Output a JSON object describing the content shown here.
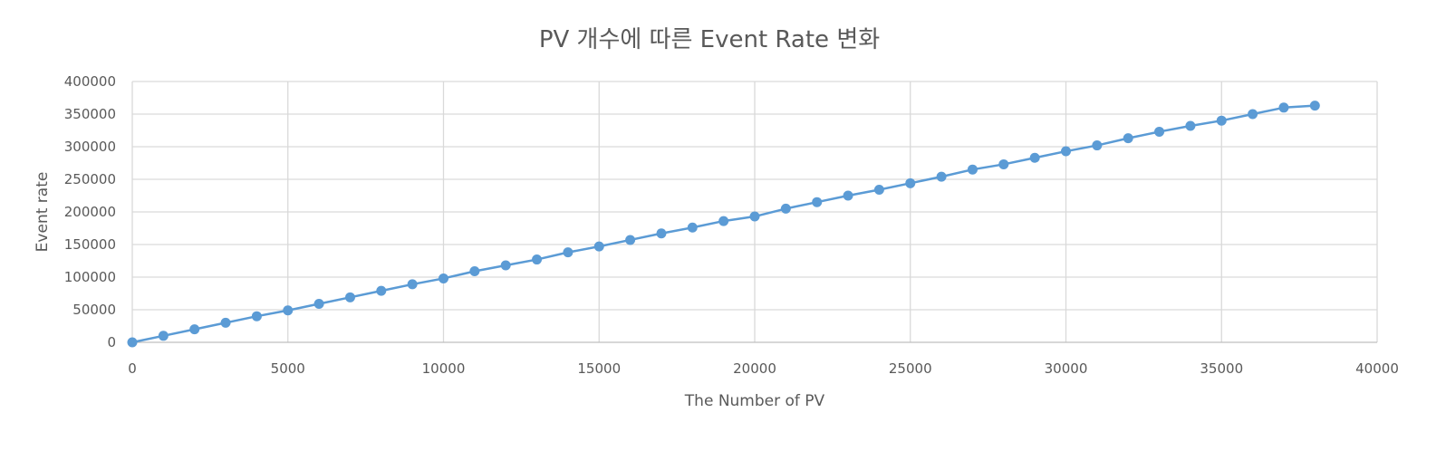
{
  "chart_data": {
    "type": "scatter",
    "title": "PV 개수에 따른 Event Rate 변화",
    "xlabel": "The Number of PV",
    "ylabel": "Event rate",
    "xlim": [
      0,
      40000
    ],
    "ylim": [
      0,
      400000
    ],
    "x_ticks": [
      "0",
      "5000",
      "10000",
      "15000",
      "20000",
      "25000",
      "30000",
      "35000",
      "40000"
    ],
    "y_ticks": [
      "0",
      "50000",
      "100000",
      "150000",
      "200000",
      "250000",
      "300000",
      "350000",
      "400000"
    ],
    "grid": true,
    "legend": "none",
    "series": [
      {
        "color": "#5b9bd5",
        "x": [
          0,
          1000,
          2000,
          3000,
          4000,
          5000,
          6000,
          7000,
          8000,
          9000,
          10000,
          11000,
          12000,
          13000,
          14000,
          15000,
          16000,
          17000,
          18000,
          19000,
          20000,
          21000,
          22000,
          23000,
          24000,
          25000,
          26000,
          27000,
          28000,
          29000,
          30000,
          31000,
          32000,
          33000,
          34000,
          35000,
          36000,
          37000,
          38000
        ],
        "y": [
          0,
          10000,
          20000,
          30000,
          40000,
          49000,
          59000,
          69000,
          79000,
          89000,
          98000,
          109000,
          118000,
          127000,
          138000,
          147000,
          157000,
          167000,
          176000,
          186000,
          193000,
          205000,
          215000,
          225000,
          234000,
          244000,
          254000,
          265000,
          273000,
          283000,
          293000,
          302000,
          313000,
          323000,
          332000,
          340000,
          350000,
          360000,
          363000
        ]
      }
    ]
  }
}
